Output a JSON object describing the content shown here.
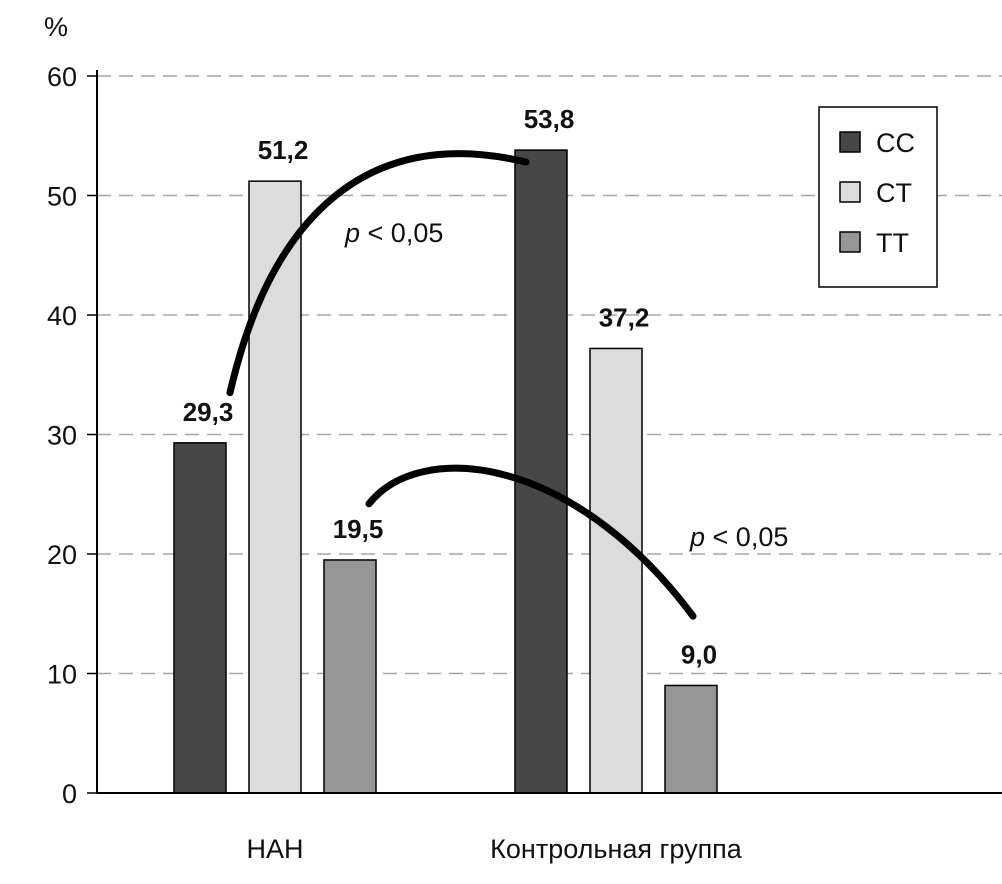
{
  "chart_data": {
    "type": "bar",
    "y_unit": "%",
    "ylim": [
      0,
      60
    ],
    "yticks": [
      "0",
      "10",
      "20",
      "30",
      "40",
      "50",
      "60"
    ],
    "ytick_values": [
      0,
      10,
      20,
      30,
      40,
      50,
      60
    ],
    "grid": "dashed horizontal",
    "legend_position": "top-right",
    "categories": [
      "НАН",
      "Контрольная группа"
    ],
    "series": [
      {
        "name": "CC",
        "color": "#474747",
        "values": [
          29.3,
          53.8
        ],
        "labels": [
          "29,3",
          "53,8"
        ]
      },
      {
        "name": "CT",
        "color": "#dcdcdc",
        "values": [
          51.2,
          37.2
        ],
        "labels": [
          "51,2",
          "37,2"
        ]
      },
      {
        "name": "TT",
        "color": "#969696",
        "values": [
          19.5,
          9.0
        ],
        "labels": [
          "19,5",
          "9,0"
        ]
      }
    ],
    "annotations": [
      {
        "p_symbol": "p",
        "text": " < 0,05",
        "connects": "CT НАН – CC Контрольная группа"
      },
      {
        "p_symbol": "p",
        "text": " < 0,05",
        "connects": "TT НАН – TT Контрольная группа"
      }
    ]
  }
}
